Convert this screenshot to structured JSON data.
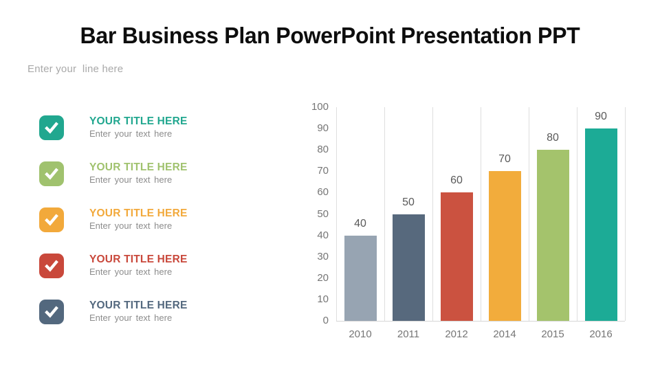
{
  "slide": {
    "title": "Bar Business Plan PowerPoint Presentation PPT",
    "tagline": "Enter your  line here"
  },
  "list": {
    "items": [
      {
        "title": "YOUR TITLE HERE",
        "subtitle": "Enter your text here",
        "color": "#21a78f"
      },
      {
        "title": "YOUR TITLE HERE",
        "subtitle": "Enter your text here",
        "color": "#a0c26e"
      },
      {
        "title": "YOUR TITLE HERE",
        "subtitle": "Enter your text here",
        "color": "#f2a93b"
      },
      {
        "title": "YOUR TITLE HERE",
        "subtitle": "Enter your text here",
        "color": "#c9483b"
      },
      {
        "title": "YOUR TITLE HERE",
        "subtitle": "Enter your text here",
        "color": "#53687e"
      }
    ]
  },
  "chart_data": {
    "type": "bar",
    "categories": [
      "2010",
      "2011",
      "2012",
      "2014",
      "2015",
      "2016"
    ],
    "values": [
      40,
      50,
      60,
      70,
      80,
      90
    ],
    "bar_colors": [
      "#97a4b2",
      "#57697d",
      "#cb5240",
      "#f2ac3c",
      "#a4c36c",
      "#1cab96"
    ],
    "title": "",
    "xlabel": "",
    "ylabel": "",
    "ylim": [
      0,
      100
    ],
    "ytick_step": 10,
    "grid": "vertical-only",
    "legend": "none",
    "value_labels": true,
    "gridline_color": "#dedede",
    "axisline_color": "#d6d6d6",
    "tick_label_color": "#757575",
    "value_label_color": "#595959"
  }
}
